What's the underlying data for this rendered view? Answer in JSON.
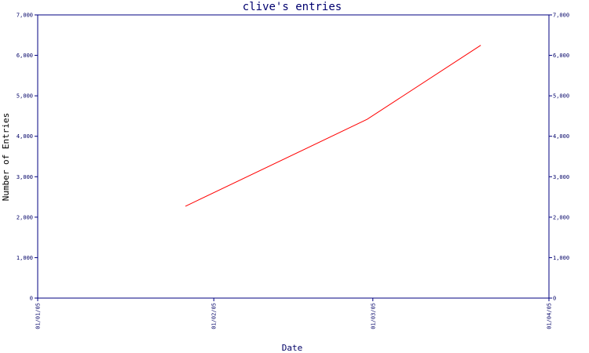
{
  "chart_data": {
    "type": "line",
    "title": "clive's entries",
    "xlabel": "Date",
    "ylabel": "Number of Entries",
    "ylim": [
      0,
      7000
    ],
    "y_ticks": [
      0,
      1000,
      2000,
      3000,
      4000,
      5000,
      6000,
      7000
    ],
    "y_tick_labels": [
      "0",
      "1,000",
      "2,000",
      "3,000",
      "4,000",
      "5,000",
      "6,000",
      "7,000"
    ],
    "x_ticks": [
      "2005-01-01",
      "2005-02-01",
      "2005-03-01",
      "2005-04-01"
    ],
    "x_tick_labels": [
      "01/01/05",
      "01/02/05",
      "01/03/05",
      "01/04/05"
    ],
    "xlim": [
      "2005-01-01",
      "2005-04-01"
    ],
    "grid": false,
    "series": [
      {
        "color": "#ff0000",
        "x": [
          "2005-01-27",
          "2005-02-28",
          "2005-03-20"
        ],
        "y": [
          2270,
          4420,
          6250
        ]
      }
    ]
  }
}
